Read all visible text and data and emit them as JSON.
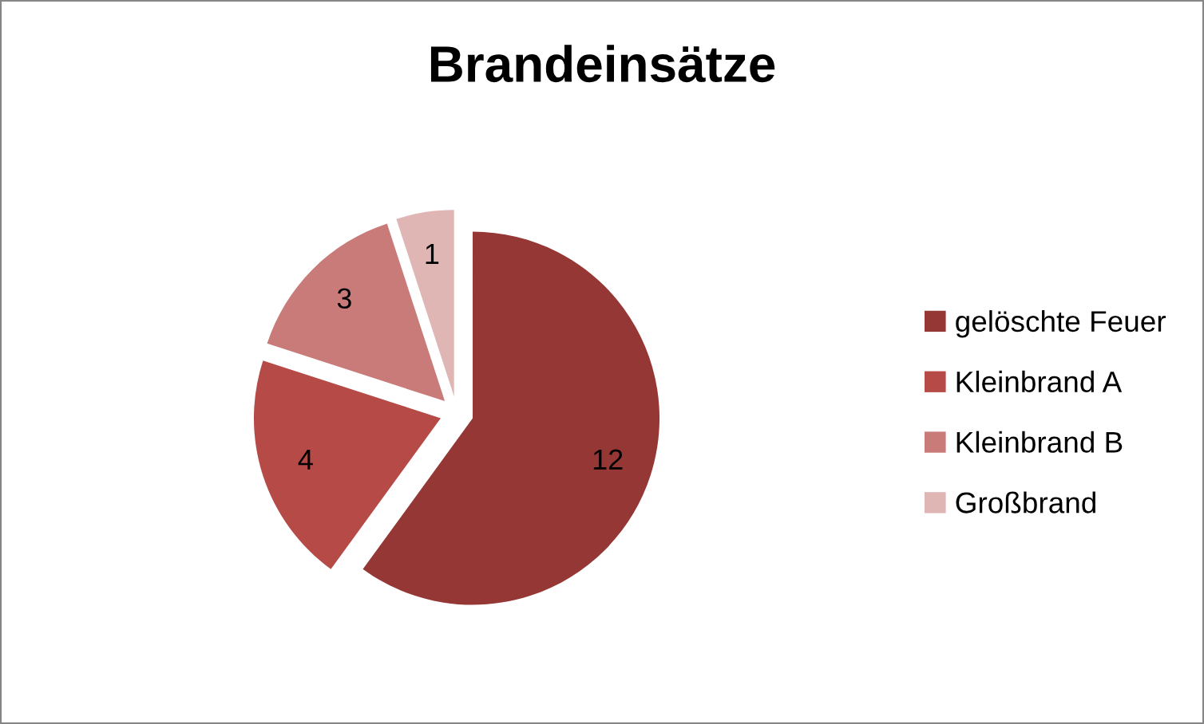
{
  "chart_data": {
    "type": "pie",
    "title": "Brandeinsätze",
    "categories": [
      "gelöschte Feuer",
      "Kleinbrand A",
      "Kleinbrand B",
      "Großbrand"
    ],
    "values": [
      12,
      4,
      3,
      1
    ],
    "colors": [
      "#953735",
      "#b64a47",
      "#c97b79",
      "#e0b6b5"
    ],
    "data_labels": true,
    "legend": "right"
  }
}
